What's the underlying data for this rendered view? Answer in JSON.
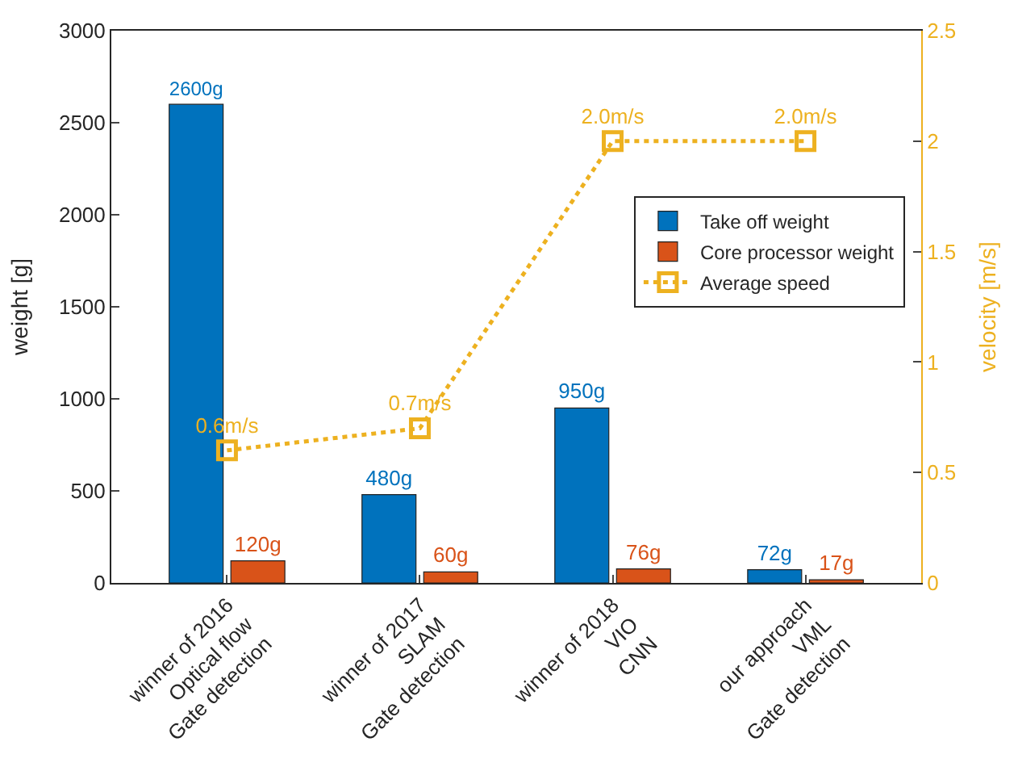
{
  "chart_data": {
    "type": "bar",
    "categories": [
      "winner of 2016\nOptical flow\nGate detection",
      "winner of 2017\nSLAM\nGate detection",
      "winner of 2018\nVIO\nCNN",
      "our approach\nVML\nGate detection"
    ],
    "series": [
      {
        "name": "Take off weight",
        "color": "#0072bd",
        "values": [
          2600,
          480,
          950,
          72
        ],
        "value_labels": [
          "2600g",
          "480g",
          "950g",
          "72g"
        ]
      },
      {
        "name": "Core processor weight",
        "color": "#d95319",
        "values": [
          120,
          60,
          76,
          17
        ],
        "value_labels": [
          "120g",
          "60g",
          "76g",
          "17g"
        ]
      },
      {
        "name": "Average speed",
        "type": "line",
        "axis": "y2",
        "color": "#edb120",
        "values": [
          0.6,
          0.7,
          2.0,
          2.0
        ],
        "value_labels": [
          "0.6m/s",
          "0.7m/s",
          "2.0m/s",
          "2.0m/s"
        ],
        "marker": "square",
        "line_style": "dotted"
      }
    ],
    "ylabel": "weight [g]",
    "y2label": "velocity [m/s]",
    "ylim": [
      0,
      3000
    ],
    "yticks": [
      0,
      500,
      1000,
      1500,
      2000,
      2500,
      3000
    ],
    "y2lim": [
      0,
      2.5
    ],
    "y2ticks": [
      0,
      0.5,
      1,
      1.5,
      2,
      2.5
    ],
    "legend": "right"
  }
}
